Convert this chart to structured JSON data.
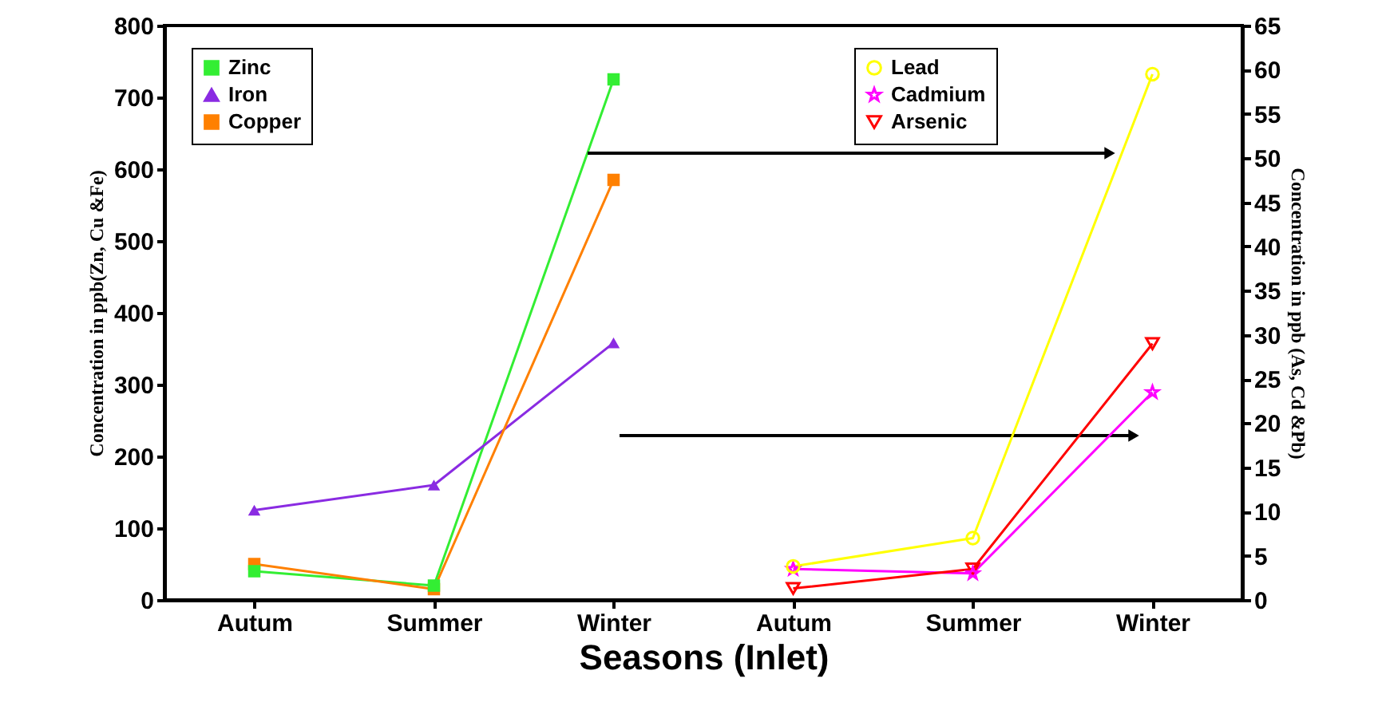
{
  "chart_data": {
    "type": "line",
    "xlabel": "Seasons (Inlet)",
    "ylabel": "Concentration in ppb(Zn, Cu &Fe)",
    "y2label": "Concentration in ppb (As, Cd &Pb)",
    "categories": [
      "Autum",
      "Summer",
      "Winter",
      "Autum",
      "Summer",
      "Winter"
    ],
    "ylim": [
      0,
      800
    ],
    "yticks": [
      0,
      100,
      200,
      300,
      400,
      500,
      600,
      700,
      800
    ],
    "y2lim": [
      0,
      65
    ],
    "y2ticks": [
      0,
      5,
      10,
      15,
      20,
      25,
      30,
      35,
      40,
      45,
      50,
      55,
      60,
      65
    ],
    "grid": false,
    "legend": "top left",
    "series": [
      {
        "name": "Zinc",
        "color": "#33ee33",
        "marker": "square",
        "values": [
          40,
          20,
          725,
          null,
          null,
          null
        ]
      },
      {
        "name": "Iron",
        "color": "#8a2be2",
        "marker": "triangle",
        "values": [
          125,
          160,
          358,
          null,
          null,
          null
        ]
      },
      {
        "name": "Copper",
        "color": "#ff8000",
        "marker": "square",
        "values": [
          50,
          15,
          585,
          null,
          null,
          null
        ]
      },
      {
        "name": "Lead",
        "color": "#ffff00",
        "marker": "circle",
        "axis": "y2",
        "values": [
          null,
          null,
          null,
          3.8,
          7,
          59.5
        ]
      },
      {
        "name": "Cadmium",
        "color": "#ff00ff",
        "marker": "star",
        "axis": "y2",
        "values": [
          null,
          null,
          null,
          3.5,
          3,
          23.5
        ]
      },
      {
        "name": "Arsenic",
        "color": "#ff0000",
        "marker": "triangle-down",
        "axis": "y2",
        "values": [
          null,
          null,
          null,
          1.3,
          3.5,
          29
        ]
      }
    ]
  }
}
